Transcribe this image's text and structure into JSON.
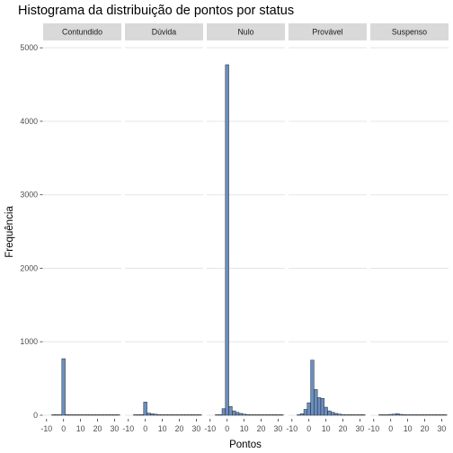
{
  "chart_data": {
    "type": "bar",
    "title": "Histograma da distribuição de pontos por status",
    "xlabel": "Pontos",
    "ylabel": "Frequência",
    "x_ticks": [
      -10,
      0,
      10,
      20,
      30
    ],
    "x_tick_labels": [
      "-10",
      "0",
      "10",
      "20",
      "30"
    ],
    "y_ticks": [
      0,
      1000,
      2000,
      3000,
      4000,
      5000
    ],
    "y_tick_labels": [
      "0",
      "1000",
      "2000",
      "3000",
      "4000",
      "5000"
    ],
    "xlim": [
      -12,
      34
    ],
    "ylim": [
      0,
      5100
    ],
    "grid": true,
    "bin_width": 2,
    "bar_fill": "#6a8fc0",
    "bar_stroke": "#1a1a1a",
    "strip_fill": "#d9d9d9",
    "grid_color": "#e5e5e5",
    "bin_centers": [
      -6,
      -4,
      -2,
      0,
      2,
      4,
      6,
      8,
      10,
      12,
      14,
      16,
      18,
      20,
      22,
      24,
      26,
      28,
      30,
      32
    ],
    "panels": [
      {
        "name": "Contundido",
        "counts": [
          0,
          0,
          5,
          770,
          10,
          6,
          4,
          3,
          2,
          2,
          1,
          1,
          1,
          0,
          0,
          0,
          0,
          0,
          0,
          0
        ]
      },
      {
        "name": "Dúvida",
        "counts": [
          0,
          2,
          8,
          180,
          30,
          20,
          14,
          8,
          5,
          3,
          2,
          2,
          1,
          1,
          0,
          0,
          0,
          0,
          0,
          0
        ]
      },
      {
        "name": "Nulo",
        "counts": [
          0,
          5,
          90,
          4770,
          120,
          60,
          40,
          25,
          15,
          10,
          7,
          5,
          3,
          2,
          1,
          1,
          0,
          0,
          0,
          0
        ]
      },
      {
        "name": "Provável",
        "counts": [
          5,
          20,
          80,
          170,
          750,
          350,
          240,
          230,
          110,
          60,
          40,
          25,
          15,
          8,
          5,
          3,
          2,
          1,
          0,
          0
        ]
      },
      {
        "name": "Suspenso",
        "counts": [
          0,
          1,
          5,
          12,
          15,
          22,
          12,
          8,
          5,
          3,
          2,
          1,
          0,
          0,
          0,
          0,
          0,
          0,
          0,
          0
        ]
      }
    ]
  }
}
